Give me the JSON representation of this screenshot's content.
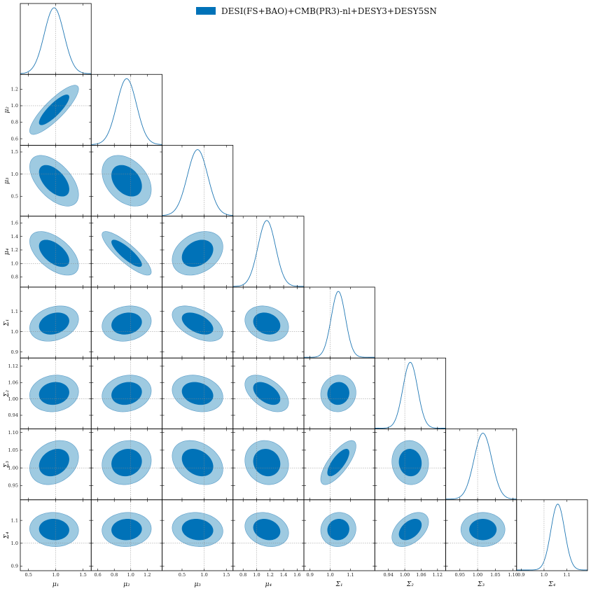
{
  "chart_data": {
    "type": "corner",
    "legend": {
      "label": "DESI(FS+BAO)+CMB(PR3)-nl+DESY3+DESY5SN",
      "color": "#0072b8",
      "placement": "top-right"
    },
    "colors": {
      "inner": "#0072b8",
      "outer": "#9ecae1",
      "outer_edge": "#5a9cc8",
      "line": "#1f77b4",
      "reference": "#888888"
    },
    "parameters": [
      {
        "label": "μ₁",
        "range": [
          0.35,
          1.65
        ],
        "truth": 1.0,
        "ticks": [
          0.5,
          1.0,
          1.5
        ],
        "tick_labels": [
          "0.5",
          "1.0",
          "1.5"
        ],
        "mean": 0.97,
        "sd": 0.18
      },
      {
        "label": "μ₂",
        "range": [
          0.52,
          1.38
        ],
        "truth": 1.0,
        "ticks": [
          0.6,
          0.8,
          1.0,
          1.2
        ],
        "tick_labels": [
          "0.6",
          "0.8",
          "1.0",
          "1.2"
        ],
        "mean": 0.95,
        "sd": 0.12
      },
      {
        "label": "μ₃",
        "range": [
          0.05,
          1.65
        ],
        "truth": 1.0,
        "ticks": [
          0.5,
          1.0,
          1.5
        ],
        "tick_labels": [
          "0.5",
          "1.0",
          "1.5"
        ],
        "mean": 0.85,
        "sd": 0.23
      },
      {
        "label": "μ₄",
        "range": [
          0.65,
          1.7
        ],
        "truth": 1.0,
        "ticks": [
          0.8,
          1.0,
          1.2,
          1.4,
          1.6
        ],
        "tick_labels": [
          "0.8",
          "1.0",
          "1.2",
          "1.4",
          "1.6"
        ],
        "mean": 1.15,
        "sd": 0.13
      },
      {
        "label": "Σ₁",
        "range": [
          0.87,
          1.22
        ],
        "truth": 1.0,
        "ticks": [
          0.9,
          1.0,
          1.1
        ],
        "tick_labels": [
          "0.9",
          "1.0",
          "1.1"
        ],
        "mean": 1.04,
        "sd": 0.035
      },
      {
        "label": "Σ₂",
        "range": [
          0.89,
          1.15
        ],
        "truth": 1.0,
        "ticks": [
          0.94,
          1.0,
          1.06,
          1.12
        ],
        "tick_labels": [
          "0.94",
          "1.00",
          "1.06",
          "1.12"
        ],
        "mean": 1.02,
        "sd": 0.027
      },
      {
        "label": "Σ₃",
        "range": [
          0.91,
          1.11
        ],
        "truth": 1.0,
        "ticks": [
          0.95,
          1.0,
          1.05,
          1.1
        ],
        "tick_labels": [
          "0.95",
          "1.00",
          "1.05",
          "1.10"
        ],
        "mean": 1.015,
        "sd": 0.025
      },
      {
        "label": "Σ₄",
        "range": [
          0.88,
          1.19
        ],
        "truth": 1.0,
        "ticks": [
          0.9,
          1.0,
          1.1
        ],
        "tick_labels": [
          "0.9",
          "1.0",
          "1.1"
        ],
        "mean": 1.06,
        "sd": 0.03
      }
    ],
    "correlations": [
      {
        "i": 1,
        "j": 0,
        "rho": 0.85
      },
      {
        "i": 2,
        "j": 0,
        "rho": -0.55
      },
      {
        "i": 2,
        "j": 1,
        "rho": -0.35
      },
      {
        "i": 3,
        "j": 0,
        "rho": -0.55
      },
      {
        "i": 3,
        "j": 1,
        "rho": -0.85
      },
      {
        "i": 3,
        "j": 2,
        "rho": 0.3
      },
      {
        "i": 4,
        "j": 0,
        "rho": 0.25
      },
      {
        "i": 4,
        "j": 1,
        "rho": 0.15
      },
      {
        "i": 4,
        "j": 2,
        "rho": -0.5
      },
      {
        "i": 4,
        "j": 3,
        "rho": -0.2
      },
      {
        "i": 5,
        "j": 0,
        "rho": 0.1
      },
      {
        "i": 5,
        "j": 1,
        "rho": 0.15
      },
      {
        "i": 5,
        "j": 2,
        "rho": -0.2
      },
      {
        "i": 5,
        "j": 3,
        "rho": -0.5
      },
      {
        "i": 5,
        "j": 4,
        "rho": 0.05
      },
      {
        "i": 6,
        "j": 0,
        "rho": 0.25
      },
      {
        "i": 6,
        "j": 1,
        "rho": 0.1
      },
      {
        "i": 6,
        "j": 2,
        "rho": -0.3
      },
      {
        "i": 6,
        "j": 3,
        "rho": -0.1
      },
      {
        "i": 6,
        "j": 4,
        "rho": 0.75
      },
      {
        "i": 6,
        "j": 5,
        "rho": -0.05
      },
      {
        "i": 7,
        "j": 0,
        "rho": -0.05
      },
      {
        "i": 7,
        "j": 1,
        "rho": 0.05
      },
      {
        "i": 7,
        "j": 2,
        "rho": -0.1
      },
      {
        "i": 7,
        "j": 3,
        "rho": -0.2
      },
      {
        "i": 7,
        "j": 4,
        "rho": 0.05
      },
      {
        "i": 7,
        "j": 5,
        "rho": 0.45
      },
      {
        "i": 7,
        "j": 6,
        "rho": 0.0
      }
    ]
  }
}
